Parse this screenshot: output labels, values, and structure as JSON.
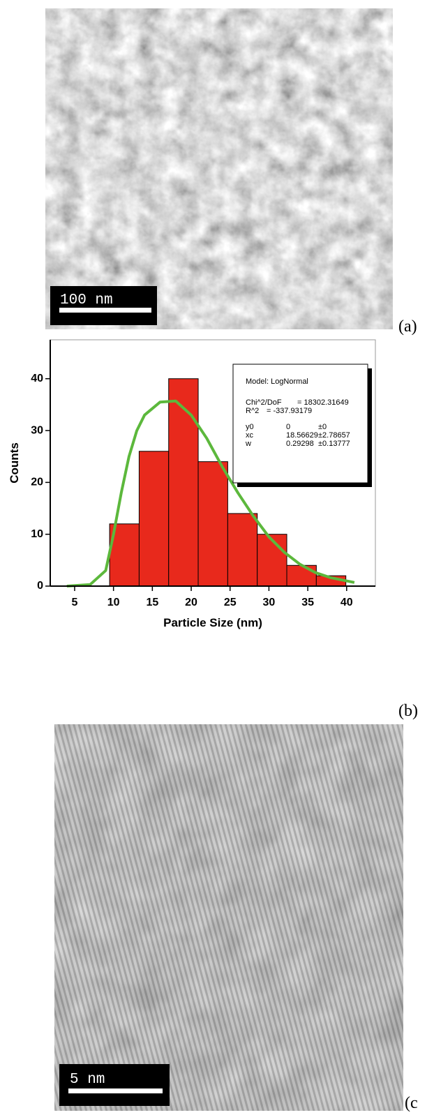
{
  "panel_a": {
    "scale_bar": "100 nm",
    "label": "(a)"
  },
  "panel_b": {
    "label": "(b)"
  },
  "panel_c": {
    "scale_bar": "5 nm",
    "label": "(c"
  },
  "chart_data": {
    "type": "histogram",
    "x_label": "Particle Size (nm)",
    "y_label": "Counts",
    "bins": [
      9.5,
      13.3,
      17.1,
      20.9,
      24.7,
      28.5,
      32.3,
      36.1,
      39.9
    ],
    "values": [
      12,
      26,
      40,
      24,
      14,
      10,
      4,
      2
    ],
    "color": "#e8291c",
    "xlim": [
      1.86,
      43.7
    ],
    "ylim": [
      0,
      47.5
    ],
    "xticks": [
      5,
      10,
      15,
      20,
      25,
      30,
      35,
      40
    ],
    "yticks": [
      0,
      10,
      20,
      30,
      40
    ],
    "fit": {
      "color": "#5cb83c",
      "x": [
        4,
        7,
        9,
        10,
        11,
        12,
        13,
        14,
        16,
        18,
        20,
        22,
        24,
        26,
        28,
        30,
        32,
        34,
        36,
        38,
        41
      ],
      "values": [
        0,
        0.3,
        3,
        10,
        18,
        25,
        30,
        33,
        35.5,
        35.7,
        33,
        28.5,
        23,
        18,
        13.5,
        9.5,
        6.5,
        4.2,
        2.6,
        1.6,
        0.7
      ]
    },
    "fit_box": {
      "model": "Model: LogNormal",
      "rows": [
        [
          "Chi^2/DoF",
          "= 18302.31649"
        ],
        [
          "R^2",
          "= -337.93179"
        ],
        [
          "y0",
          "0",
          "±0"
        ],
        [
          "xc",
          "18.56629",
          "±2.78657"
        ],
        [
          "w",
          "0.29298",
          "±0.13777"
        ]
      ]
    }
  }
}
